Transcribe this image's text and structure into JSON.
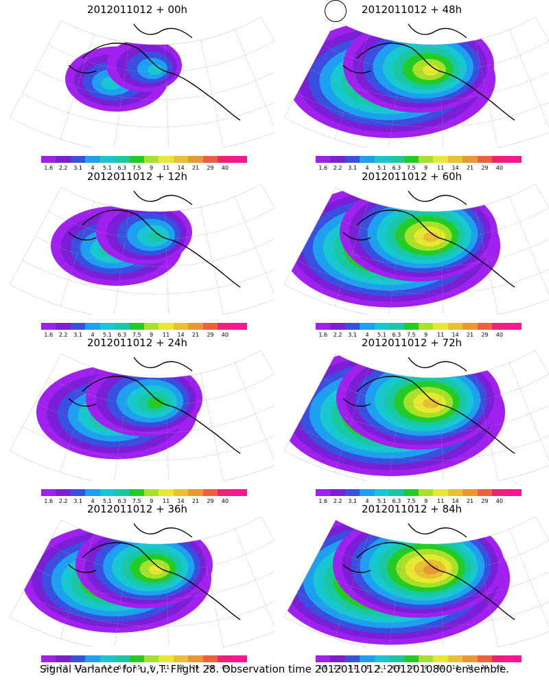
{
  "panels": [
    {
      "title": "2012011012 + 00h",
      "spread": 0.25
    },
    {
      "title": "2012011012 + 48h",
      "spread": 0.8
    },
    {
      "title": "2012011012 + 12h",
      "spread": 0.4
    },
    {
      "title": "2012011012 + 60h",
      "spread": 0.85
    },
    {
      "title": "2012011012 + 24h",
      "spread": 0.55
    },
    {
      "title": "2012011012 + 72h",
      "spread": 0.9
    },
    {
      "title": "2012011012 + 36h",
      "spread": 0.7
    },
    {
      "title": "2012011012 + 84h",
      "spread": 0.95
    }
  ],
  "colorbar": {
    "labels": [
      "1.6",
      "2.2",
      "3.1",
      "4",
      "5.1",
      "6.3",
      "7.5",
      "9",
      "11",
      "14",
      "21",
      "29",
      "40"
    ],
    "colors": [
      "#a020f0",
      "#7a1fd6",
      "#3a4fe0",
      "#1ea0f0",
      "#18c8d0",
      "#18c8a0",
      "#22cc22",
      "#a8e02a",
      "#e8e830",
      "#e8c030",
      "#e89830",
      "#f06040",
      "#f0207a",
      "#ff1493"
    ]
  },
  "caption": "Signal Variance for u,v,T. Flight 28. Observation time 2012011012. 2012010800 ensemble."
}
